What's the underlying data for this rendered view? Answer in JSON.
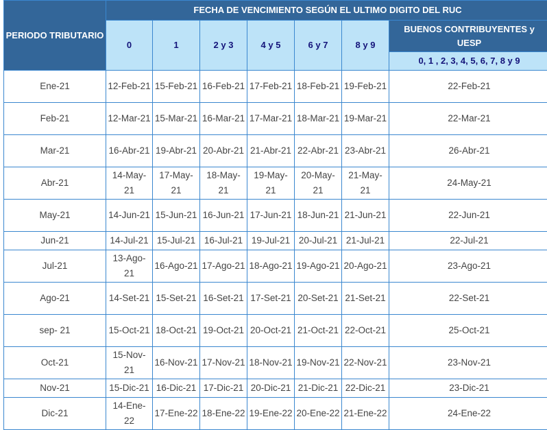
{
  "header": {
    "period": "PERIODO TRIBUTARIO",
    "group_title": "FECHA DE VENCIMIENTO SEGÚN EL ULTIMO DIGITO DEL RUC",
    "digits": [
      "0",
      "1",
      "2 y 3",
      "4 y 5",
      "6 y 7",
      "8 y 9"
    ],
    "buenos": "BUENOS CONTRIBUYENTES y UESP",
    "buenos_digits": "0, 1 , 2, 3, 4, 5, 6, 7, 8 y 9"
  },
  "colors": {
    "header_dark": "#336699",
    "header_light": "#bde3f8",
    "border": "#3a87cf"
  },
  "rows": [
    {
      "period": "Ene-21",
      "dates": [
        "12-Feb-21",
        "15-Feb-21",
        "16-Feb-21",
        "17-Feb-21",
        "18-Feb-21",
        "19-Feb-21"
      ],
      "buenos": "22-Feb-21"
    },
    {
      "period": "Feb-21",
      "dates": [
        "12-Mar-21",
        "15-Mar-21",
        "16-Mar-21",
        "17-Mar-21",
        "18-Mar-21",
        "19-Mar-21"
      ],
      "buenos": "22-Mar-21"
    },
    {
      "period": "Mar-21",
      "dates": [
        "16-Abr-21",
        "19-Abr-21",
        "20-Abr-21",
        "21-Abr-21",
        "22-Abr-21",
        "23-Abr-21"
      ],
      "buenos": "26-Abr-21"
    },
    {
      "period": "Abr-21",
      "dates": [
        "14-May-21",
        "17-May-21",
        "18-May-21",
        "19-May-21",
        "20-May-21",
        "21-May-21"
      ],
      "buenos": "24-May-21"
    },
    {
      "period": "May-21",
      "dates": [
        "14-Jun-21",
        "15-Jun-21",
        "16-Jun-21",
        "17-Jun-21",
        "18-Jun-21",
        "21-Jun-21"
      ],
      "buenos": "22-Jun-21"
    },
    {
      "period": "Jun-21",
      "dates": [
        "14-Jul-21",
        "15-Jul-21",
        "16-Jul-21",
        "19-Jul-21",
        "20-Jul-21",
        "21-Jul-21"
      ],
      "buenos": "22-Jul-21"
    },
    {
      "period": "Jul-21",
      "dates": [
        "13-Ago-21",
        "16-Ago-21",
        "17-Ago-21",
        "18-Ago-21",
        "19-Ago-21",
        "20-Ago-21"
      ],
      "buenos": "23-Ago-21"
    },
    {
      "period": "Ago-21",
      "dates": [
        "14-Set-21",
        "15-Set-21",
        "16-Set-21",
        "17-Set-21",
        "20-Set-21",
        "21-Set-21"
      ],
      "buenos": "22-Set-21"
    },
    {
      "period": "sep- 21",
      "dates": [
        "15-Oct-21",
        "18-Oct-21",
        "19-Oct-21",
        "20-Oct-21",
        "21-Oct-21",
        "22-Oct-21"
      ],
      "buenos": "25-Oct-21"
    },
    {
      "period": "Oct-21",
      "dates": [
        "15-Nov-21",
        "16-Nov-21",
        "17-Nov-21",
        "18-Nov-21",
        "19-Nov-21",
        "22-Nov-21"
      ],
      "buenos": "23-Nov-21"
    },
    {
      "period": "Nov-21",
      "dates": [
        "15-Dic-21",
        "16-Dic-21",
        "17-Dic-21",
        "20-Dic-21",
        "21-Dic-21",
        "22-Dic-21"
      ],
      "buenos": "23-Dic-21"
    },
    {
      "period": "Dic-21",
      "dates": [
        "14-Ene-22",
        "17-Ene-22",
        "18-Ene-22",
        "19-Ene-22",
        "20-Ene-22",
        "21-Ene-22"
      ],
      "buenos": "24-Ene-22"
    }
  ]
}
